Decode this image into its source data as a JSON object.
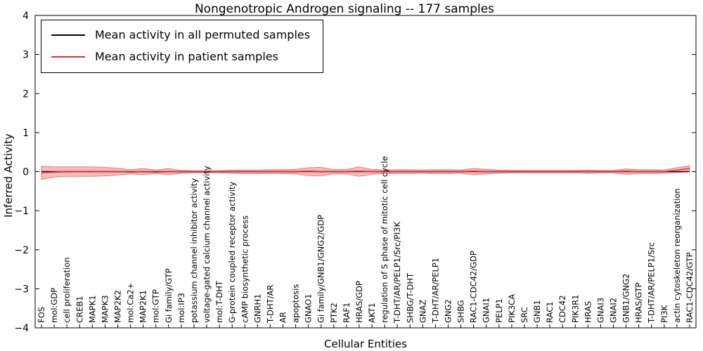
{
  "chart_data": {
    "type": "line",
    "title": "Nongenotropic Androgen signaling -- 177 samples",
    "xlabel": "Cellular Entities",
    "ylabel": "Inferred Activity",
    "ylim": [
      -4,
      4
    ],
    "yticks": [
      4,
      3,
      2,
      1,
      0,
      -1,
      -2,
      -3,
      -4
    ],
    "grid": false,
    "legend_position": "upper left",
    "categories": [
      "FOS",
      "mol:GDP",
      "cell proliferation",
      "CREB1",
      "MAPK1",
      "MAPK3",
      "MAP2K2",
      "mol:Ca2+",
      "MAP2K1",
      "mol:GTP",
      "Gi family/GTP",
      "mol:IP3",
      "potassium channel inhibitor activity",
      "voltage-gated calcium channel activity",
      "mol:T-DHT",
      "G-protein coupled receptor activity",
      "cAMP biosynthetic process",
      "GNRH1",
      "T-DHT/AR",
      "AR",
      "apoptosis",
      "GNAO1",
      "Gi family/GNB1/GNG2/GDP",
      "PTK2",
      "RAF1",
      "HRAS/GDP",
      "AKT1",
      "regulation of S phase of mitotic cell cycle",
      "T-DHT/AR/PELP1/Src/PI3K",
      "SHBG/T-DHT",
      "GNAZ",
      "T-DHT/AR/PELP1",
      "GNG2",
      "SHBG",
      "RAC1-CDC42/GDP",
      "GNAI1",
      "PELP1",
      "PIK3CA",
      "SRC",
      "GNB1",
      "RAC1",
      "CDC42",
      "PIK3R1",
      "HRAS",
      "GNAI3",
      "GNAI2",
      "GNB1/GNG2",
      "HRAS/GTP",
      "T-DHT/AR/PELP1/Src",
      "PI3K",
      "actin cytoskeleton reorganization",
      "RAC1-CDC42/GTP"
    ],
    "series": [
      {
        "name": "Mean activity in all permuted samples",
        "color": "#000000",
        "line_width": 1,
        "values": [
          0,
          0,
          0,
          0,
          0,
          0,
          0,
          0,
          0,
          0,
          0,
          0,
          0,
          0,
          0,
          0,
          0,
          0,
          0,
          0,
          0,
          0,
          0,
          0,
          0,
          0,
          0,
          0,
          0,
          0,
          0,
          0,
          0,
          0,
          0,
          0,
          0,
          0,
          0,
          0,
          0,
          0,
          0,
          0,
          0,
          0,
          0,
          0,
          0,
          0,
          0,
          0
        ]
      },
      {
        "name": "Mean activity in patient samples",
        "color": "#d93030",
        "line_width": 1.4,
        "values": [
          -0.03,
          -0.01,
          0,
          0,
          0,
          0,
          0,
          -0.01,
          0,
          -0.01,
          0,
          0,
          0,
          0,
          0,
          0,
          0,
          0,
          0,
          0,
          0,
          0.01,
          0,
          0,
          0,
          0.01,
          0,
          0,
          0,
          0,
          0,
          0,
          0,
          0,
          0.01,
          0,
          0,
          0,
          0,
          0,
          0,
          0,
          0,
          0,
          0,
          0,
          0.01,
          0,
          0,
          0,
          0.04,
          0.08
        ]
      }
    ],
    "bands": [
      {
        "name": "permuted-samples-std-band",
        "color": "#9a9a9a",
        "opacity": 0.45,
        "half_width": 0.035
      },
      {
        "name": "patient-samples-std-band",
        "color": "#ee3333",
        "opacity": 0.33,
        "edge_color": "#d93030",
        "upper": [
          0.14,
          0.12,
          0.12,
          0.12,
          0.12,
          0.11,
          0.09,
          0.05,
          0.08,
          0.04,
          0.08,
          0.03,
          0.02,
          0.02,
          0.02,
          0.04,
          0.04,
          0.04,
          0.05,
          0.05,
          0.06,
          0.1,
          0.11,
          0.05,
          0.06,
          0.12,
          0.06,
          0.04,
          0.05,
          0.05,
          0.04,
          0.05,
          0.05,
          0.04,
          0.08,
          0.06,
          0.04,
          0.03,
          0.03,
          0.03,
          0.03,
          0.03,
          0.03,
          0.04,
          0.03,
          0.03,
          0.07,
          0.05,
          0.05,
          0.04,
          0.1,
          0.15
        ],
        "lower": [
          -0.2,
          -0.14,
          -0.12,
          -0.12,
          -0.12,
          -0.11,
          -0.09,
          -0.06,
          -0.08,
          -0.05,
          -0.08,
          -0.04,
          -0.03,
          -0.03,
          -0.03,
          -0.04,
          -0.05,
          -0.05,
          -0.05,
          -0.05,
          -0.06,
          -0.1,
          -0.11,
          -0.06,
          -0.06,
          -0.12,
          -0.07,
          -0.05,
          -0.05,
          -0.05,
          -0.04,
          -0.05,
          -0.05,
          -0.04,
          -0.08,
          -0.06,
          -0.04,
          -0.03,
          -0.03,
          -0.03,
          -0.03,
          -0.03,
          -0.03,
          -0.04,
          -0.03,
          -0.03,
          -0.07,
          -0.05,
          -0.05,
          -0.04,
          -0.02,
          0.0
        ]
      }
    ]
  }
}
